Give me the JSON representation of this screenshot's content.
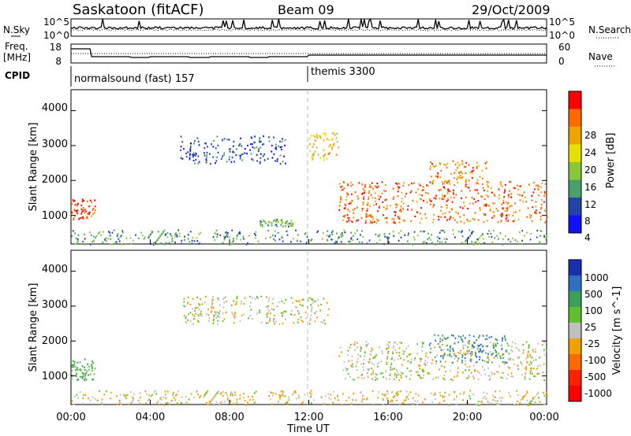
{
  "header": {
    "station": "Saskatoon (fitACF)",
    "beam": "Beam 09",
    "date": "29/Oct/2009"
  },
  "noise_panel": {
    "left_label": "N.Sky",
    "right_label": "N.Search",
    "left_ticks": [
      "10^5",
      "10^0"
    ],
    "right_ticks": [
      "10^5",
      "10^0"
    ]
  },
  "freq_panel": {
    "left_label_1": "Freq.",
    "left_label_2": "[MHz]",
    "right_label": "Nave",
    "left_ticks": [
      "18",
      "8"
    ],
    "right_ticks": [
      "60",
      "0"
    ]
  },
  "cpid_panel": {
    "label": "CPID",
    "modes": [
      {
        "name": "normalsound (fast) 157",
        "start_hour": 0
      },
      {
        "name": "themis 3300",
        "start_hour": 12
      }
    ]
  },
  "x_axis": {
    "label": "Time UT",
    "ticks": [
      "00:00",
      "04:00",
      "08:00",
      "12:00",
      "16:00",
      "20:00",
      "00:00"
    ]
  },
  "y_axis": {
    "label": "Slant Range [km]",
    "ticks": [
      "1000",
      "2000",
      "3000",
      "4000"
    ]
  },
  "power_colorbar": {
    "label": "Power [dB]",
    "ticks": [
      "28",
      "24",
      "20",
      "16",
      "12",
      "8",
      "4"
    ],
    "colors": [
      "#ff0000",
      "#ff6a00",
      "#f0a400",
      "#e8e000",
      "#8ac83a",
      "#4aa06a",
      "#2244a8",
      "#1010ff"
    ]
  },
  "velocity_colorbar": {
    "label": "Velocity [m s^-1]",
    "ticks": [
      "1000",
      "500",
      "100",
      "25",
      "-25",
      "-100",
      "-500",
      "-1000"
    ],
    "colors": [
      "#1830b0",
      "#3070c0",
      "#3aa05a",
      "#60c030",
      "#c0c0c0",
      "#f0a000",
      "#ff6a00",
      "#ff2000",
      "#ff0000"
    ]
  },
  "chart_data": {
    "type": "heatmap",
    "title": "Saskatoon (fitACF)",
    "xlabel": "Time UT",
    "ylabel": "Slant Range [km]",
    "xlim": [
      0,
      24
    ],
    "ylim": [
      180,
      4600
    ],
    "x_ticks_hours": [
      0,
      4,
      8,
      12,
      16,
      20,
      24
    ],
    "y_ticks_km": [
      1000,
      2000,
      3000,
      4000
    ],
    "power_scatter_regions": [
      {
        "t0": 0.0,
        "t1": 1.2,
        "r0": 900,
        "r1": 1500,
        "power_db": 28
      },
      {
        "t0": 5.5,
        "t1": 10.8,
        "r0": 2500,
        "r1": 3300,
        "power_db": 6
      },
      {
        "t0": 9.5,
        "t1": 11.2,
        "r0": 700,
        "r1": 900,
        "power_db": 12
      },
      {
        "t0": 12.0,
        "t1": 13.5,
        "r0": 2600,
        "r1": 3400,
        "power_db": 20
      },
      {
        "t0": 13.5,
        "t1": 24.0,
        "r0": 800,
        "r1": 2000,
        "power_db": 26
      },
      {
        "t0": 18.0,
        "t1": 21.0,
        "r0": 1900,
        "r1": 2600,
        "power_db": 24
      },
      {
        "t0": 0.0,
        "t1": 24.0,
        "r0": 180,
        "r1": 600,
        "power_db": 10
      }
    ],
    "velocity_scatter_regions": [
      {
        "t0": 0.0,
        "t1": 1.2,
        "r0": 900,
        "r1": 1500,
        "velocity": 100
      },
      {
        "t0": 5.5,
        "t1": 13.0,
        "r0": 2500,
        "r1": 3300,
        "velocity": 0
      },
      {
        "t0": 13.5,
        "t1": 24.0,
        "r0": 900,
        "r1": 2000,
        "velocity": 0
      },
      {
        "t0": 18.0,
        "t1": 22.0,
        "r0": 1400,
        "r1": 2200,
        "velocity": 500
      },
      {
        "t0": 0.0,
        "t1": 24.0,
        "r0": 180,
        "r1": 600,
        "velocity": -25
      }
    ],
    "mode_change_hour": 12
  }
}
